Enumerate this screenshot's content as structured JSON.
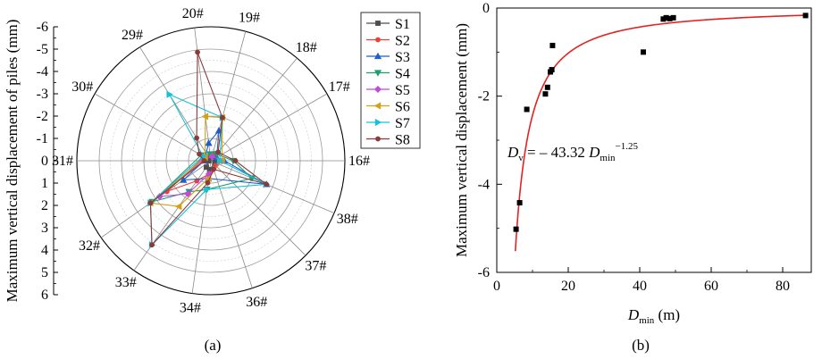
{
  "figure": {
    "panel_a_label": "(a)",
    "panel_b_label": "(b)"
  },
  "chart_data": [
    {
      "type": "radar",
      "panel": "(a)",
      "radial_axis_label": "Maximum vertical displacement of piles (mm)",
      "radial_ticks": [
        "-6",
        "-5",
        "-4",
        "-3",
        "-2",
        "-1",
        "0",
        "1",
        "2",
        "3",
        "4",
        "5",
        "6"
      ],
      "rlim": [
        -6,
        6
      ],
      "angular_labels": [
        "16#",
        "17#",
        "18#",
        "19#",
        "20#",
        "29#",
        "30#",
        "31#",
        "32#",
        "33#",
        "34#",
        "36#",
        "37#",
        "38#"
      ],
      "angular_label_angles_deg": [
        0,
        30,
        50,
        75,
        97,
        122,
        150,
        180,
        215,
        235,
        262,
        288,
        315,
        337
      ],
      "grid": true,
      "legend_position": "top-right",
      "series": [
        {
          "name": "S1",
          "color": "#4d4d4d",
          "marker": "square",
          "points": [
            [
              0,
              0.3
            ],
            [
              50,
              0.25
            ],
            [
              97,
              0.2
            ],
            [
              180,
              0.1
            ],
            [
              235,
              0.35
            ],
            [
              262,
              0.4
            ],
            [
              337,
              0.2
            ]
          ]
        },
        {
          "name": "S2",
          "color": "#e8413c",
          "marker": "circle",
          "points": [
            [
              0,
              0.4
            ],
            [
              75,
              0.3
            ],
            [
              150,
              0.35
            ],
            [
              215,
              2.4
            ],
            [
              235,
              1.1
            ],
            [
              262,
              0.6
            ],
            [
              315,
              0.3
            ]
          ]
        },
        {
          "name": "S3",
          "color": "#1f5fc4",
          "marker": "triangle-up",
          "points": [
            [
              0,
              0.6
            ],
            [
              30,
              0.3
            ],
            [
              75,
              1.4
            ],
            [
              97,
              0.8
            ],
            [
              180,
              0.3
            ],
            [
              215,
              1.5
            ],
            [
              262,
              0.8
            ],
            [
              337,
              2.7
            ]
          ]
        },
        {
          "name": "S4",
          "color": "#1e9e6e",
          "marker": "triangle-down",
          "points": [
            [
              0,
              1.0
            ],
            [
              50,
              0.4
            ],
            [
              97,
              0.3
            ],
            [
              150,
              0.5
            ],
            [
              215,
              3.2
            ],
            [
              235,
              1.7
            ],
            [
              262,
              1.3
            ],
            [
              337,
              2.0
            ]
          ]
        },
        {
          "name": "S5",
          "color": "#c04bd6",
          "marker": "diamond",
          "points": [
            [
              0,
              0.5
            ],
            [
              75,
              0.2
            ],
            [
              180,
              0.4
            ],
            [
              215,
              2.8
            ],
            [
              235,
              1.8
            ],
            [
              262,
              0.6
            ]
          ]
        },
        {
          "name": "S6",
          "color": "#d4a017",
          "marker": "triangle-left",
          "points": [
            [
              0,
              0.5
            ],
            [
              75,
              2.0
            ],
            [
              97,
              2.0
            ],
            [
              150,
              0.3
            ],
            [
              215,
              3.3
            ],
            [
              235,
              2.5
            ],
            [
              262,
              0.8
            ]
          ]
        },
        {
          "name": "S7",
          "color": "#17c0d6",
          "marker": "triangle-right",
          "points": [
            [
              0,
              0.4
            ],
            [
              75,
              2.0
            ],
            [
              122,
              3.5
            ],
            [
              150,
              0.4
            ],
            [
              215,
              3.3
            ],
            [
              235,
              4.6
            ],
            [
              262,
              1.3
            ],
            [
              337,
              2.7
            ]
          ]
        },
        {
          "name": "S8",
          "color": "#8b3a3a",
          "marker": "circle",
          "points": [
            [
              0,
              1.1
            ],
            [
              50,
              0.5
            ],
            [
              75,
              2.0
            ],
            [
              97,
              4.9
            ],
            [
              122,
              1.2
            ],
            [
              150,
              0.6
            ],
            [
              180,
              0.3
            ],
            [
              215,
              3.3
            ],
            [
              235,
              4.6
            ],
            [
              262,
              1.0
            ],
            [
              288,
              0.4
            ],
            [
              337,
              2.7
            ]
          ]
        }
      ]
    },
    {
      "type": "scatter",
      "panel": "(b)",
      "xlabel_main": "D",
      "xlabel_sub": "min",
      "xlabel_unit": " (m)",
      "ylabel": "Maximum vertical displacement (mm)",
      "xlim": [
        0,
        88
      ],
      "ylim": [
        -6,
        0
      ],
      "x_ticks": [
        "0",
        "20",
        "40",
        "60",
        "80"
      ],
      "y_ticks": [
        "0",
        "-2",
        "-4",
        "-6"
      ],
      "grid": false,
      "points": [
        {
          "x": 5.4,
          "y": -5.02
        },
        {
          "x": 6.4,
          "y": -4.42
        },
        {
          "x": 8.4,
          "y": -2.3
        },
        {
          "x": 13.6,
          "y": -1.95
        },
        {
          "x": 14.2,
          "y": -1.8
        },
        {
          "x": 15.0,
          "y": -1.45
        },
        {
          "x": 15.4,
          "y": -1.4
        },
        {
          "x": 15.6,
          "y": -0.85
        },
        {
          "x": 41.0,
          "y": -1.0
        },
        {
          "x": 46.6,
          "y": -0.25
        },
        {
          "x": 47.4,
          "y": -0.22
        },
        {
          "x": 48.4,
          "y": -0.24
        },
        {
          "x": 49.4,
          "y": -0.22
        },
        {
          "x": 86.4,
          "y": -0.17
        }
      ],
      "fit": {
        "coef": -43.32,
        "exponent": -1.25,
        "color": "#e32222",
        "label_left": "D",
        "label_left_sub": "v",
        "label_mid": " = – 43.32 ",
        "label_var": "D",
        "label_var_sub": "min",
        "label_exp": "−1.25"
      }
    }
  ]
}
